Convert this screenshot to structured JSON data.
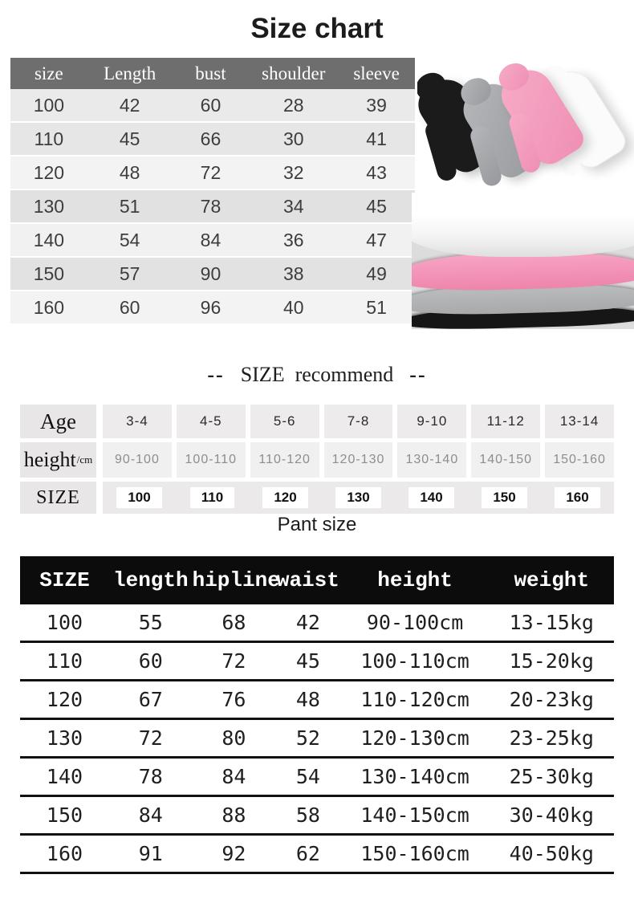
{
  "page": {
    "title": "Size chart",
    "pant_title": "Pant size"
  },
  "recommend_heading": {
    "dash_left": "--",
    "title": "SIZE  recommend",
    "dash_right": "--"
  },
  "colors": {
    "size_table_header_bg": "#6e6e6e",
    "pant_table_header_bg": "#0c0c0c",
    "hoodie_black": "#1b1b1b",
    "hoodie_gray": "#a5a7aa",
    "hoodie_pink": "#f49ec0",
    "hoodie_white": "#fbfbfb",
    "fabric_pink": "#f79fc2",
    "fabric_gray": "#b9babc",
    "fabric_black": "#161616"
  },
  "size_chart": {
    "headers": [
      "size",
      "Length",
      "bust",
      "shoulder",
      "sleeve"
    ],
    "rows": [
      [
        "100",
        "42",
        "60",
        "28",
        "39"
      ],
      [
        "110",
        "45",
        "66",
        "30",
        "41"
      ],
      [
        "120",
        "48",
        "72",
        "32",
        "43"
      ],
      [
        "130",
        "51",
        "78",
        "34",
        "45"
      ],
      [
        "140",
        "54",
        "84",
        "36",
        "47"
      ],
      [
        "150",
        "57",
        "90",
        "38",
        "49"
      ],
      [
        "160",
        "60",
        "96",
        "40",
        "51"
      ]
    ]
  },
  "recommend": {
    "age_label": "Age",
    "height_label": "height",
    "height_unit": "/cm",
    "size_label": "SIZE",
    "ages": [
      "3-4",
      "4-5",
      "5-6",
      "7-8",
      "9-10",
      "11-12",
      "13-14"
    ],
    "heights": [
      "90-100",
      "100-110",
      "110-120",
      "120-130",
      "130-140",
      "140-150",
      "150-160"
    ],
    "sizes": [
      "100",
      "110",
      "120",
      "130",
      "140",
      "150",
      "160"
    ]
  },
  "pant": {
    "headers": [
      "SIZE",
      "length",
      "hipline",
      "waist",
      "height",
      "weight"
    ],
    "rows": [
      [
        "100",
        "55",
        "68",
        "42",
        "90-100cm",
        "13-15kg"
      ],
      [
        "110",
        "60",
        "72",
        "45",
        "100-110cm",
        "15-20kg"
      ],
      [
        "120",
        "67",
        "76",
        "48",
        "110-120cm",
        "20-23kg"
      ],
      [
        "130",
        "72",
        "80",
        "52",
        "120-130cm",
        "23-25kg"
      ],
      [
        "140",
        "78",
        "84",
        "54",
        "130-140cm",
        "25-30kg"
      ],
      [
        "150",
        "84",
        "88",
        "58",
        "140-150cm",
        "30-40kg"
      ],
      [
        "160",
        "91",
        "92",
        "62",
        "150-160cm",
        "40-50kg"
      ]
    ]
  }
}
